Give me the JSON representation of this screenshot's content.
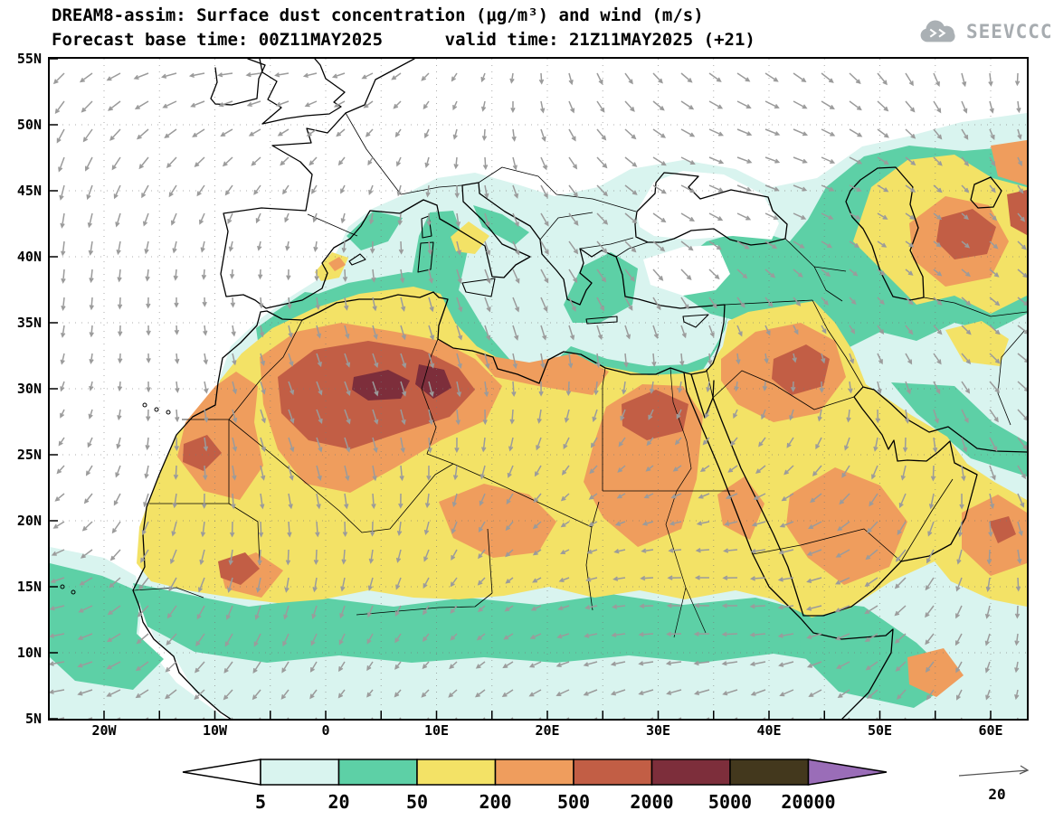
{
  "title": {
    "line1": "DREAM8-assim: Surface dust concentration (μg/m³) and wind (m/s)",
    "line2": "Forecast base time: 00Z11MAY2025      valid time: 21Z11MAY2025 (+21)"
  },
  "logo": {
    "text": "SEEVCCC"
  },
  "axes": {
    "lat_labels": [
      "55N",
      "50N",
      "45N",
      "40N",
      "35N",
      "30N",
      "25N",
      "20N",
      "15N",
      "10N",
      "5N"
    ],
    "lon_labels": [
      "20W",
      "10W",
      "0",
      "10E",
      "20E",
      "30E",
      "40E",
      "50E",
      "60E"
    ]
  },
  "legend": {
    "values": [
      "5",
      "20",
      "50",
      "200",
      "500",
      "2000",
      "5000",
      "20000"
    ],
    "colors": [
      "#ffffff",
      "#d9f4ef",
      "#5dd0a6",
      "#f3e266",
      "#ef9d5d",
      "#c25e45",
      "#7d2e3b",
      "#43381d",
      "#9a6db8"
    ]
  },
  "wind_ref": {
    "label": "20"
  },
  "chart_data": {
    "type": "heatmap",
    "title": "DREAM8-assim: Surface dust concentration (μg/m³) and wind (m/s)",
    "variable": "surface dust concentration",
    "units": "μg/m³",
    "wind_units": "m/s",
    "forecast_base_time": "00Z11MAY2025",
    "valid_time": "21Z11MAY2025 (+21)",
    "lon_range": [
      -25,
      63
    ],
    "lat_range": [
      5,
      55
    ],
    "xlabel": "longitude",
    "ylabel": "latitude",
    "grid": "dotted 5-degree graticule",
    "legend_position": "bottom",
    "contour_levels": [
      5,
      20,
      50,
      200,
      500,
      2000,
      5000,
      20000
    ],
    "level_colors": [
      "#ffffff",
      "#d9f4ef",
      "#5dd0a6",
      "#f3e266",
      "#ef9d5d",
      "#c25e45",
      "#7d2e3b",
      "#43381d",
      "#9a6db8"
    ],
    "wind_reference_ms": 20,
    "wind_arrow_color": "#9b9b9b",
    "high_dust_regions": [
      "Morocco / western Algeria Sahara core (500-5000 μg/m³)",
      "Mali (500-2000 μg/m³ pocket)",
      "NE Egypt / Nile region (500-2000 μg/m³)",
      "Iraq / northern Saudi Arabia (500-2000 μg/m³)",
      "East of Caspian Sea (500-2000 μg/m³)",
      "Broad 50-500 μg/m³ field over Sahara, Sahel and Arabian Peninsula"
    ],
    "low_dust_regions": [
      "North Atlantic (below 5 μg/m³)",
      "Northern and western Europe (below 5-20 μg/m³)",
      "Black Sea (below 5 μg/m³)",
      "Mediterranean coastal fringe and sub-Saharan band (5-50 μg/m³)"
    ]
  }
}
